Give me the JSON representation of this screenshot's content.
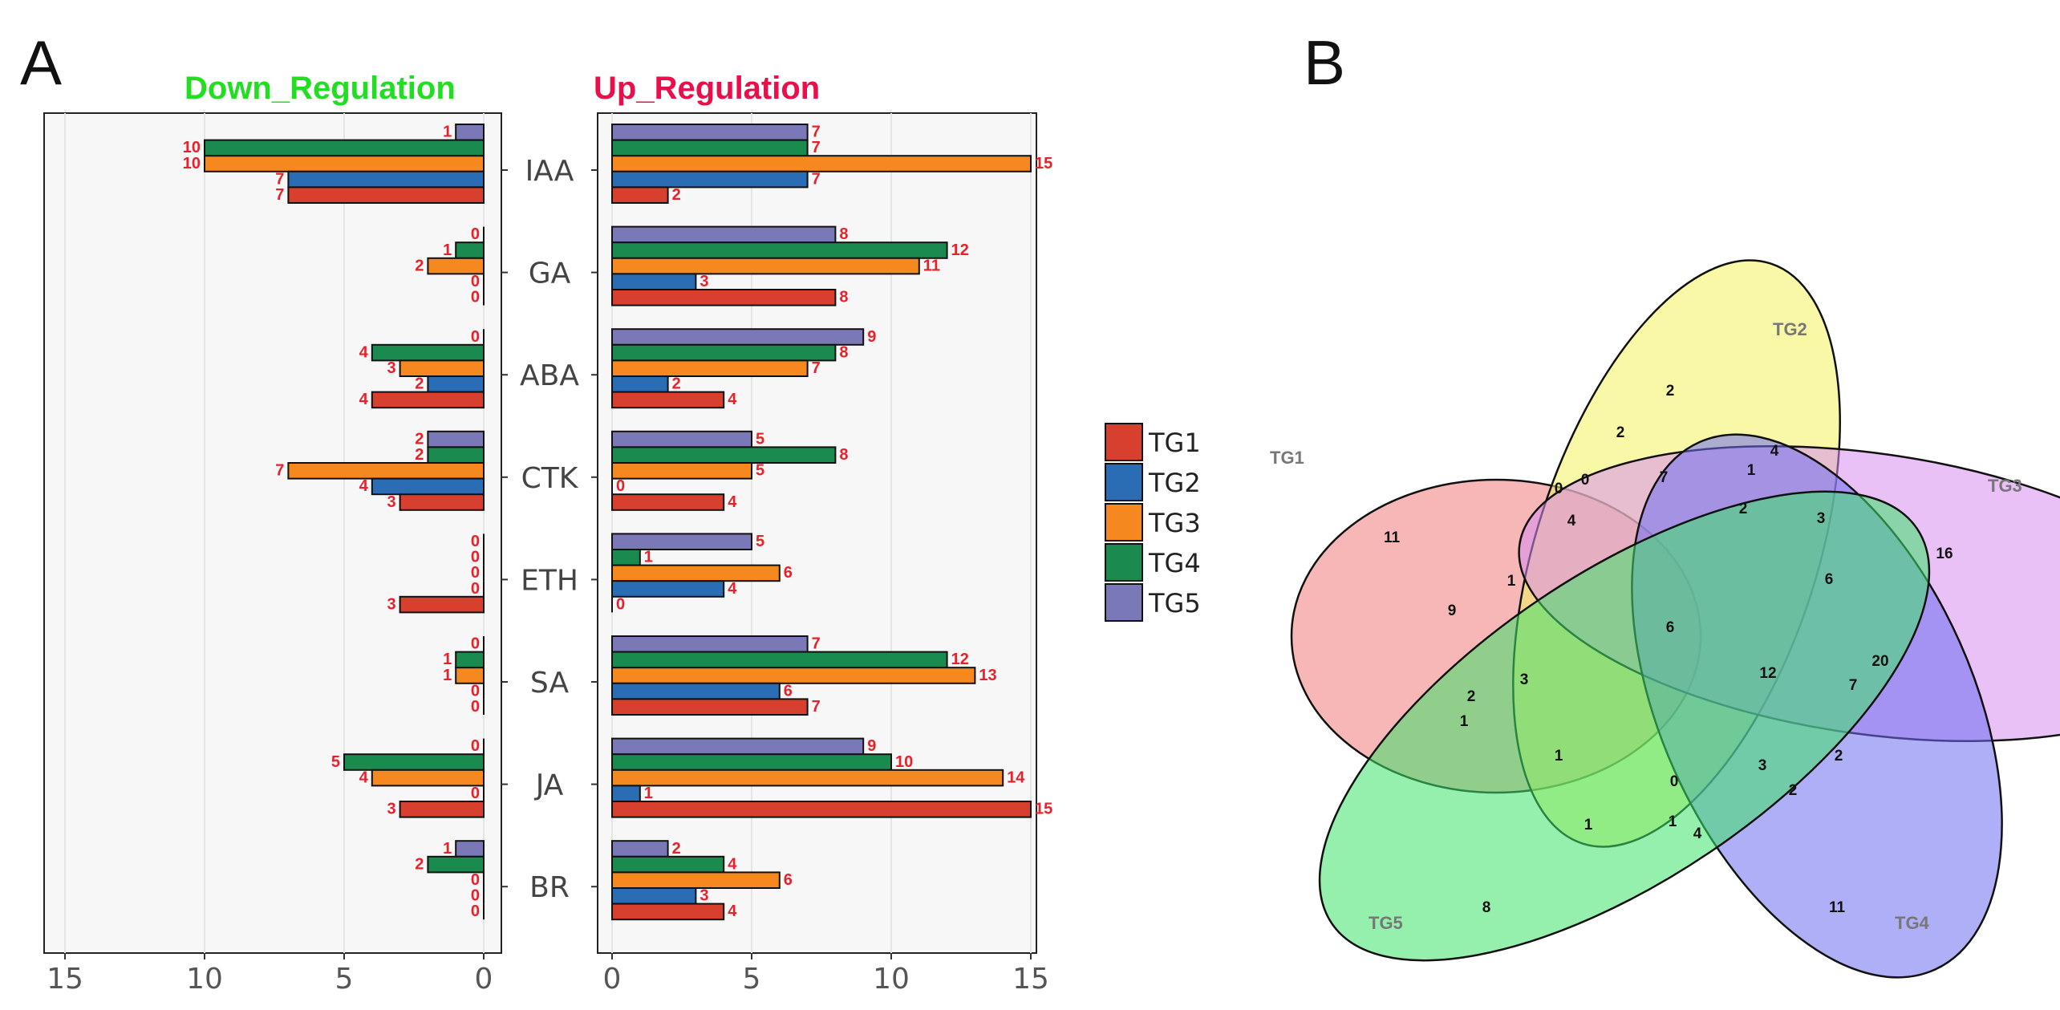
{
  "panels": {
    "a": "A",
    "b": "B"
  },
  "colors": {
    "TG1": "#d7402e",
    "TG2": "#2a6db5",
    "TG3": "#f5881f",
    "TG4": "#1a8a4f",
    "TG5": "#7b78b8",
    "down_title": "#22dd22",
    "up_title": "#e8104a",
    "value_label": "#e8202a"
  },
  "chart_data": {
    "type": "bar",
    "orientation": "horizontal",
    "down_title": "Down_Regulation",
    "up_title": "Up_Regulation",
    "categories": [
      "IAA",
      "GA",
      "ABA",
      "CTK",
      "ETH",
      "SA",
      "JA",
      "BR"
    ],
    "series_order": [
      "TG1",
      "TG2",
      "TG3",
      "TG4",
      "TG5"
    ],
    "down": {
      "TG1": [
        7,
        0,
        4,
        3,
        3,
        0,
        3,
        0
      ],
      "TG2": [
        7,
        0,
        2,
        4,
        0,
        0,
        0,
        0
      ],
      "TG3": [
        10,
        2,
        3,
        7,
        0,
        1,
        4,
        0
      ],
      "TG4": [
        10,
        1,
        4,
        2,
        0,
        1,
        5,
        2
      ],
      "TG5": [
        1,
        0,
        0,
        2,
        0,
        0,
        0,
        1
      ]
    },
    "up": {
      "TG1": [
        2,
        8,
        4,
        4,
        0,
        7,
        15,
        4
      ],
      "TG2": [
        7,
        3,
        2,
        0,
        4,
        6,
        1,
        3
      ],
      "TG3": [
        15,
        11,
        7,
        5,
        6,
        13,
        14,
        6
      ],
      "TG4": [
        7,
        12,
        8,
        8,
        1,
        12,
        10,
        4
      ],
      "TG5": [
        7,
        8,
        9,
        5,
        5,
        7,
        9,
        2
      ]
    },
    "down_axis": {
      "ticks": [
        "15",
        "10",
        "5",
        "0"
      ],
      "xlim": [
        16,
        0
      ]
    },
    "up_axis": {
      "ticks": [
        "0",
        "5",
        "10",
        "15"
      ],
      "xlim": [
        0,
        16
      ]
    },
    "legend": [
      "TG1",
      "TG2",
      "TG3",
      "TG4",
      "TG5"
    ]
  },
  "venn": {
    "set_labels": {
      "TG1": "TG1",
      "TG2": "TG2",
      "TG3": "TG3",
      "TG4": "TG4",
      "TG5": "TG5"
    },
    "fills": {
      "TG1": "#f07c7c",
      "TG2": "#f3f25e",
      "TG3": "#d98ef0",
      "TG4": "#6e6ef0",
      "TG5": "#3ee26a"
    },
    "counts": [
      "2",
      "2",
      "4",
      "1",
      "0",
      "0",
      "7",
      "11",
      "4",
      "2",
      "3",
      "16",
      "1",
      "6",
      "9",
      "6",
      "20",
      "12",
      "7",
      "2",
      "3",
      "2",
      "1",
      "1",
      "3",
      "0",
      "2",
      "1",
      "1",
      "4",
      "8",
      "11"
    ]
  }
}
